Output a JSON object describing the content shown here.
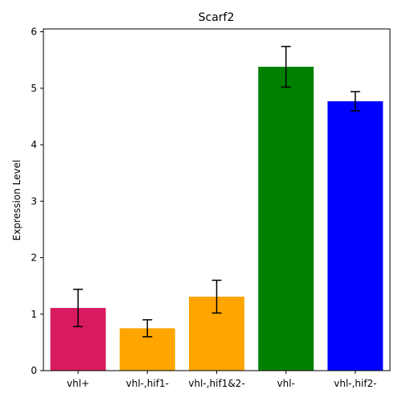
{
  "chart_data": {
    "type": "bar",
    "title": "Scarf2",
    "xlabel": "",
    "ylabel": "Expression Level",
    "ylim": [
      0,
      6.05
    ],
    "yticks": [
      0,
      1,
      2,
      3,
      4,
      5,
      6
    ],
    "categories": [
      "vhl+",
      "vhl-,hif1-",
      "vhl-,hif1&2-",
      "vhl-",
      "vhl-,hif2-"
    ],
    "values": [
      1.11,
      0.75,
      1.31,
      5.38,
      4.77
    ],
    "errors": [
      0.33,
      0.15,
      0.29,
      0.36,
      0.17
    ],
    "colors": [
      "#d81b60",
      "#ffa500",
      "#ffa500",
      "#008000",
      "#0000ff"
    ],
    "grid": false,
    "legend": "none"
  }
}
